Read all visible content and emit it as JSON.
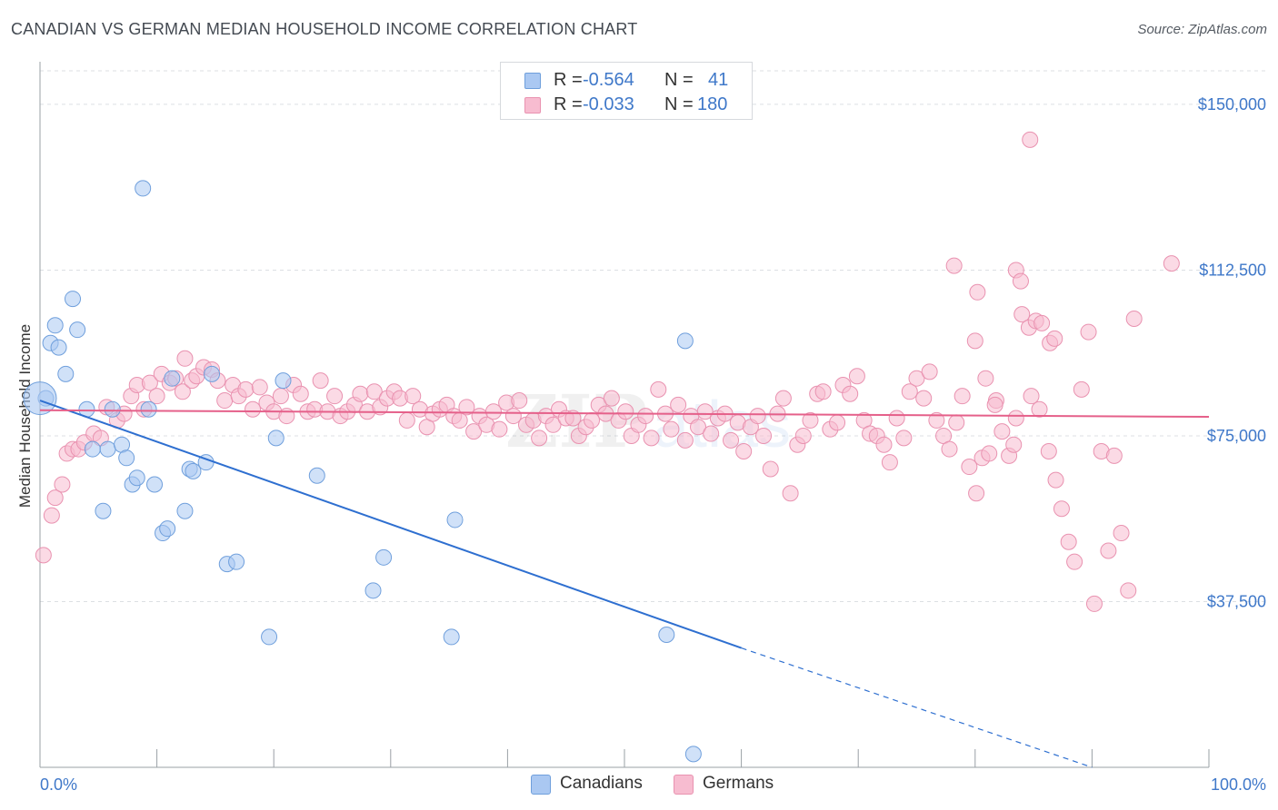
{
  "header": {
    "title": "CANADIAN VS GERMAN MEDIAN HOUSEHOLD INCOME CORRELATION CHART",
    "source": "Source: ZipAtlas.com"
  },
  "legend": {
    "rows": [
      {
        "r_label": "R =",
        "r_value": "-0.564",
        "n_label": "N =",
        "n_value": "41"
      },
      {
        "r_label": "R =",
        "r_value": "-0.033",
        "n_label": "N =",
        "n_value": "180"
      }
    ]
  },
  "bottom_legend": [
    "Canadians",
    "Germans"
  ],
  "colors": {
    "canadians_fill": "#aac8f2",
    "canadians_stroke": "#6f9fdc",
    "canadians_line": "#2e6fd0",
    "germans_fill": "#f7bcd0",
    "germans_stroke": "#e992b0",
    "germans_line": "#e5608a",
    "tick_text": "#3f78c9"
  },
  "chart_data": {
    "type": "scatter",
    "title": "CANADIAN VS GERMAN MEDIAN HOUSEHOLD INCOME CORRELATION CHART",
    "ylabel": "Median Household Income",
    "xlabel": "",
    "xlim": [
      0,
      100
    ],
    "ylim": [
      0,
      158000
    ],
    "x_tick_labels": [
      "0.0%",
      "100.0%"
    ],
    "y_ticks": [
      37500,
      75000,
      112500,
      150000
    ],
    "y_tick_labels": [
      "$37,500",
      "$75,000",
      "$112,500",
      "$150,000"
    ],
    "grid": "horizontal dashed",
    "legend_position": "top-center",
    "series": [
      {
        "name": "Canadians",
        "points": [
          [
            0.5,
            83500
          ],
          [
            0.9,
            96000
          ],
          [
            1.3,
            100000
          ],
          [
            1.6,
            95000
          ],
          [
            2.2,
            89000
          ],
          [
            2.8,
            106000
          ],
          [
            3.2,
            99000
          ],
          [
            4.0,
            81000
          ],
          [
            4.5,
            72000
          ],
          [
            5.4,
            58000
          ],
          [
            5.8,
            72000
          ],
          [
            6.2,
            81000
          ],
          [
            7.0,
            73000
          ],
          [
            7.4,
            70000
          ],
          [
            7.9,
            64000
          ],
          [
            8.3,
            65500
          ],
          [
            8.8,
            131000
          ],
          [
            9.3,
            81000
          ],
          [
            9.8,
            64000
          ],
          [
            10.5,
            53000
          ],
          [
            10.9,
            54000
          ],
          [
            11.3,
            88000
          ],
          [
            12.4,
            58000
          ],
          [
            12.8,
            67500
          ],
          [
            13.1,
            67000
          ],
          [
            14.2,
            69000
          ],
          [
            14.7,
            89000
          ],
          [
            16.0,
            46000
          ],
          [
            16.8,
            46500
          ],
          [
            19.6,
            29500
          ],
          [
            20.2,
            74500
          ],
          [
            20.8,
            87500
          ],
          [
            23.7,
            66000
          ],
          [
            28.5,
            40000
          ],
          [
            29.4,
            47500
          ],
          [
            35.2,
            29500
          ],
          [
            35.5,
            56000
          ],
          [
            53.6,
            30000
          ],
          [
            55.2,
            96500
          ],
          [
            55.9,
            3000
          ],
          [
            0.0,
            83500
          ]
        ]
      },
      {
        "name": "Germans",
        "points": [
          [
            0.3,
            48000
          ],
          [
            1.0,
            57000
          ],
          [
            1.3,
            61000
          ],
          [
            1.9,
            64000
          ],
          [
            2.3,
            71000
          ],
          [
            2.8,
            72000
          ],
          [
            3.3,
            72000
          ],
          [
            3.8,
            73500
          ],
          [
            4.6,
            75500
          ],
          [
            5.2,
            74500
          ],
          [
            5.7,
            81500
          ],
          [
            6.6,
            78500
          ],
          [
            7.2,
            80000
          ],
          [
            7.8,
            84000
          ],
          [
            8.3,
            86500
          ],
          [
            8.9,
            81000
          ],
          [
            9.4,
            87000
          ],
          [
            10.0,
            84000
          ],
          [
            10.4,
            89000
          ],
          [
            11.1,
            87000
          ],
          [
            11.6,
            88000
          ],
          [
            12.2,
            85000
          ],
          [
            12.4,
            92500
          ],
          [
            13.0,
            87500
          ],
          [
            13.4,
            88500
          ],
          [
            14.0,
            90500
          ],
          [
            14.7,
            90000
          ],
          [
            15.2,
            87500
          ],
          [
            15.8,
            83000
          ],
          [
            16.5,
            86500
          ],
          [
            17.0,
            84000
          ],
          [
            17.6,
            85500
          ],
          [
            18.2,
            81000
          ],
          [
            18.8,
            86000
          ],
          [
            19.4,
            82500
          ],
          [
            20.0,
            80500
          ],
          [
            20.6,
            84000
          ],
          [
            21.1,
            79500
          ],
          [
            21.7,
            86500
          ],
          [
            22.3,
            84500
          ],
          [
            22.9,
            80500
          ],
          [
            23.5,
            81000
          ],
          [
            24.0,
            87500
          ],
          [
            24.6,
            80500
          ],
          [
            25.2,
            84000
          ],
          [
            25.7,
            79500
          ],
          [
            26.3,
            80500
          ],
          [
            26.9,
            82000
          ],
          [
            27.4,
            84500
          ],
          [
            28.0,
            80500
          ],
          [
            28.6,
            85000
          ],
          [
            29.1,
            81500
          ],
          [
            29.7,
            83500
          ],
          [
            30.3,
            85000
          ],
          [
            30.8,
            83500
          ],
          [
            31.4,
            78500
          ],
          [
            31.9,
            84000
          ],
          [
            32.5,
            81000
          ],
          [
            33.1,
            77000
          ],
          [
            33.6,
            80000
          ],
          [
            34.2,
            81000
          ],
          [
            34.8,
            82000
          ],
          [
            35.4,
            79500
          ],
          [
            35.9,
            78500
          ],
          [
            36.5,
            81500
          ],
          [
            37.1,
            76000
          ],
          [
            37.6,
            79500
          ],
          [
            38.2,
            77500
          ],
          [
            38.8,
            80500
          ],
          [
            39.3,
            76500
          ],
          [
            39.9,
            82500
          ],
          [
            40.5,
            79500
          ],
          [
            41.0,
            83000
          ],
          [
            41.6,
            77500
          ],
          [
            42.2,
            78500
          ],
          [
            42.7,
            74500
          ],
          [
            43.3,
            79500
          ],
          [
            43.9,
            77500
          ],
          [
            44.4,
            81000
          ],
          [
            45.0,
            79000
          ],
          [
            45.6,
            79000
          ],
          [
            46.1,
            75000
          ],
          [
            46.7,
            77000
          ],
          [
            47.2,
            78500
          ],
          [
            47.8,
            82000
          ],
          [
            48.4,
            80000
          ],
          [
            48.9,
            83500
          ],
          [
            49.5,
            78500
          ],
          [
            50.1,
            80500
          ],
          [
            50.6,
            75000
          ],
          [
            51.2,
            77500
          ],
          [
            51.8,
            79500
          ],
          [
            52.3,
            74500
          ],
          [
            52.9,
            85500
          ],
          [
            53.5,
            80000
          ],
          [
            54.0,
            76500
          ],
          [
            54.6,
            82000
          ],
          [
            55.2,
            74000
          ],
          [
            55.7,
            79500
          ],
          [
            56.3,
            77000
          ],
          [
            56.9,
            80500
          ],
          [
            57.4,
            75500
          ],
          [
            58.0,
            79000
          ],
          [
            58.6,
            80000
          ],
          [
            59.1,
            74000
          ],
          [
            59.7,
            78000
          ],
          [
            60.2,
            71500
          ],
          [
            60.8,
            77000
          ],
          [
            61.4,
            79500
          ],
          [
            61.9,
            75000
          ],
          [
            62.5,
            67500
          ],
          [
            63.1,
            80000
          ],
          [
            63.6,
            83500
          ],
          [
            64.2,
            62000
          ],
          [
            64.8,
            73000
          ],
          [
            65.3,
            75000
          ],
          [
            65.9,
            78500
          ],
          [
            66.5,
            84500
          ],
          [
            67.0,
            85000
          ],
          [
            67.6,
            76500
          ],
          [
            68.2,
            78000
          ],
          [
            68.7,
            86500
          ],
          [
            69.3,
            84500
          ],
          [
            69.9,
            88500
          ],
          [
            70.5,
            78500
          ],
          [
            71.0,
            75500
          ],
          [
            71.6,
            75000
          ],
          [
            72.2,
            73000
          ],
          [
            72.7,
            69000
          ],
          [
            73.3,
            79000
          ],
          [
            73.9,
            74500
          ],
          [
            74.4,
            85000
          ],
          [
            75.0,
            88000
          ],
          [
            75.6,
            83500
          ],
          [
            76.1,
            89500
          ],
          [
            76.7,
            78500
          ],
          [
            77.3,
            75000
          ],
          [
            77.8,
            72000
          ],
          [
            78.4,
            78000
          ],
          [
            78.9,
            84000
          ],
          [
            79.5,
            68000
          ],
          [
            80.1,
            62000
          ],
          [
            80.6,
            70000
          ],
          [
            81.2,
            71000
          ],
          [
            81.8,
            83000
          ],
          [
            82.3,
            76000
          ],
          [
            82.9,
            70500
          ],
          [
            83.5,
            79000
          ],
          [
            84.0,
            102500
          ],
          [
            84.6,
            99500
          ],
          [
            85.2,
            101000
          ],
          [
            85.7,
            100500
          ],
          [
            86.3,
            71500
          ],
          [
            86.9,
            65000
          ],
          [
            87.4,
            58500
          ],
          [
            88.0,
            51000
          ],
          [
            88.5,
            46500
          ],
          [
            89.1,
            85500
          ],
          [
            89.7,
            98500
          ],
          [
            90.2,
            37000
          ],
          [
            90.8,
            71500
          ],
          [
            91.4,
            49000
          ],
          [
            91.9,
            70500
          ],
          [
            92.5,
            53000
          ],
          [
            93.1,
            40000
          ],
          [
            93.6,
            101500
          ],
          [
            78.2,
            113500
          ],
          [
            80.2,
            107500
          ],
          [
            83.5,
            112500
          ],
          [
            83.9,
            110000
          ],
          [
            80.0,
            96500
          ],
          [
            80.9,
            88000
          ],
          [
            81.7,
            82000
          ],
          [
            84.7,
            142000
          ],
          [
            86.4,
            96000
          ],
          [
            86.8,
            97000
          ],
          [
            84.8,
            84000
          ],
          [
            83.3,
            73000
          ],
          [
            96.8,
            114000
          ],
          [
            85.5,
            81000
          ]
        ]
      }
    ],
    "trend_lines": [
      {
        "series": "Canadians",
        "from": [
          0,
          83000
        ],
        "to": [
          60,
          27000
        ],
        "dashed_from": [
          60,
          27000
        ],
        "dashed_to": [
          90,
          0
        ]
      },
      {
        "series": "Germans",
        "from": [
          0,
          80800
        ],
        "to": [
          100,
          79300
        ]
      }
    ]
  }
}
